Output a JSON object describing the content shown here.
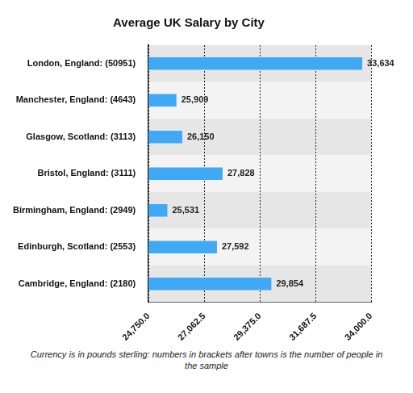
{
  "chart_data": {
    "type": "bar",
    "orientation": "horizontal",
    "title": "Average UK Salary by City",
    "categories": [
      "London, England: (50951)",
      "Manchester, England: (4643)",
      "Glasgow, Scotland: (3113)",
      "Bristol, England: (3111)",
      "Birmingham, England: (2949)",
      "Edinburgh, Scotland: (2553)",
      "Cambridge, England: (2180)"
    ],
    "values": [
      33634,
      25909,
      26150,
      27828,
      25531,
      27592,
      29854
    ],
    "value_labels": [
      "33,634",
      "25,909",
      "26,150",
      "27,828",
      "25,531",
      "27,592",
      "29,854"
    ],
    "data_labels": true,
    "color": "#3fa9f5",
    "xlim": [
      24750,
      34000
    ],
    "xticks": [
      {
        "value": 24750,
        "label": "24,750.0"
      },
      {
        "value": 27062.5,
        "label": "27,062.5"
      },
      {
        "value": 29375,
        "label": "29,375.0"
      },
      {
        "value": 31687.5,
        "label": "31,687.5"
      },
      {
        "value": 34000,
        "label": "34,000.0"
      }
    ],
    "grid": true,
    "annotations": [
      "Currency is in pounds sterling: numbers in brackets after towns is the number of people in the sample"
    ]
  }
}
